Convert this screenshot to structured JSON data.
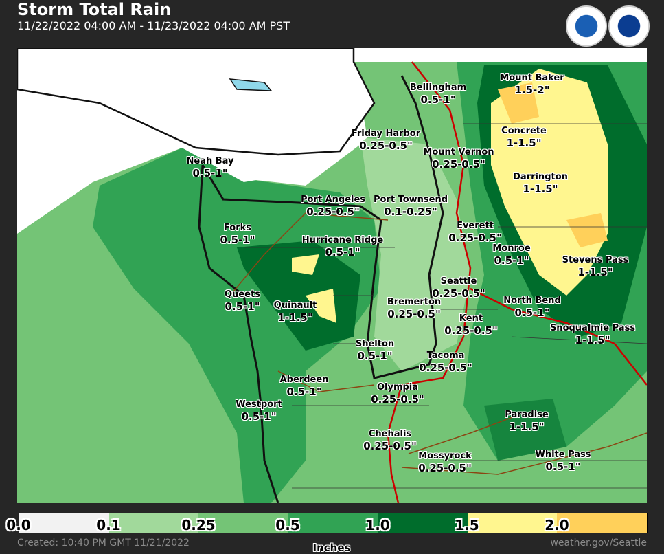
{
  "header": {
    "title": "Storm Total Rain",
    "subtitle": "11/22/2022 04:00 AM - 11/23/2022 04:00 AM PST",
    "logos": [
      "NOAA",
      "NATIONAL WEATHER SERVICE"
    ]
  },
  "colors": {
    "0.0-0.1": "#f2f2f2",
    "0.1-0.25": "#a1d99b",
    "0.25-0.5": "#74c476",
    "0.5-1.0": "#31a354",
    "1.0-1.5": "#006d2c",
    "1.5-2.0": "#fff68f",
    "2.0+": "#ffd05a"
  },
  "locations": [
    {
      "name": "Mount Baker",
      "value": "1.5-2\""
    },
    {
      "name": "Bellingham",
      "value": "0.5-1\""
    },
    {
      "name": "Friday Harbor",
      "value": "0.25-0.5\""
    },
    {
      "name": "Concrete",
      "value": "1-1.5\""
    },
    {
      "name": "Mount Vernon",
      "value": "0.25-0.5\""
    },
    {
      "name": "Neah Bay",
      "value": "0.5-1\""
    },
    {
      "name": "Darrington",
      "value": "1-1.5\""
    },
    {
      "name": "Port Angeles",
      "value": "0.25-0.5\""
    },
    {
      "name": "Port Townsend",
      "value": "0.1-0.25\""
    },
    {
      "name": "Everett",
      "value": "0.25-0.5\""
    },
    {
      "name": "Forks",
      "value": "0.5-1\""
    },
    {
      "name": "Hurricane Ridge",
      "value": "0.5-1\""
    },
    {
      "name": "Monroe",
      "value": "0.5-1\""
    },
    {
      "name": "Stevens Pass",
      "value": "1-1.5\""
    },
    {
      "name": "Queets",
      "value": "0.5-1\""
    },
    {
      "name": "Seattle",
      "value": "0.25-0.5\""
    },
    {
      "name": "Quinault",
      "value": "1-1.5\""
    },
    {
      "name": "Bremerton",
      "value": "0.25-0.5\""
    },
    {
      "name": "North Bend",
      "value": "0.5-1\""
    },
    {
      "name": "Kent",
      "value": "0.25-0.5\""
    },
    {
      "name": "Snoqualmie Pass",
      "value": "1-1.5\""
    },
    {
      "name": "Shelton",
      "value": "0.5-1\""
    },
    {
      "name": "Tacoma",
      "value": "0.25-0.5\""
    },
    {
      "name": "Aberdeen",
      "value": "0.5-1\""
    },
    {
      "name": "Olympia",
      "value": "0.25-0.5\""
    },
    {
      "name": "Westport",
      "value": "0.5-1\""
    },
    {
      "name": "Paradise",
      "value": "1-1.5\""
    },
    {
      "name": "Chehalis",
      "value": "0.25-0.5\""
    },
    {
      "name": "Mossyrock",
      "value": "0.25-0.5\""
    },
    {
      "name": "White Pass",
      "value": "0.5-1\""
    }
  ],
  "legend": {
    "ticks": [
      "0.0",
      "0.1",
      "0.25",
      "0.5",
      "1.0",
      "1.5",
      "2.0"
    ],
    "units": "Inches"
  },
  "footer": {
    "created": "Created: 10:40 PM GMT 11/21/2022",
    "site": "weather.gov/Seattle"
  }
}
